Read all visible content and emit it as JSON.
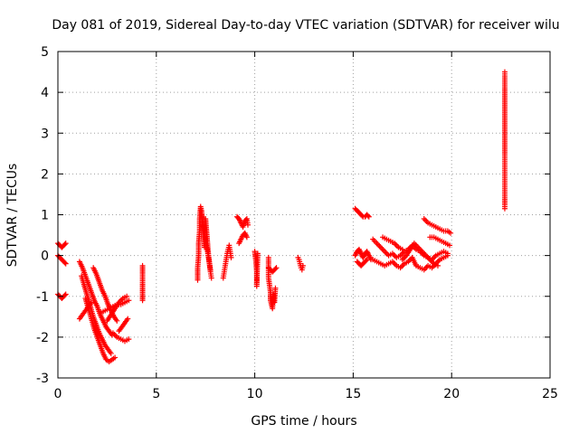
{
  "chart_data": {
    "type": "scatter",
    "title": "Day 081 of 2019, Sidereal Day-to-day VTEC variation (SDTVAR) for receiver wilu",
    "xlabel": "GPS time / hours",
    "ylabel": "SDTVAR / TECUs",
    "xlim": [
      0,
      25
    ],
    "ylim": [
      -3,
      5
    ],
    "xticks": [
      "0",
      "5",
      "10",
      "15",
      "20",
      "25"
    ],
    "yticks": [
      "-3",
      "-2",
      "-1",
      "0",
      "1",
      "2",
      "3",
      "4",
      "5"
    ],
    "grid": true,
    "marker": "plus",
    "color": "#ff0000",
    "segments": [
      {
        "x": [
          0.0,
          0.1,
          0.2,
          0.3,
          0.4
        ],
        "y": [
          0.3,
          0.25,
          0.2,
          0.25,
          0.3
        ]
      },
      {
        "x": [
          0.0,
          0.1,
          0.2,
          0.3,
          0.4
        ],
        "y": [
          0.0,
          -0.05,
          -0.1,
          -0.15,
          -0.2
        ]
      },
      {
        "x": [
          0.0,
          0.1,
          0.2,
          0.3,
          0.4
        ],
        "y": [
          -0.95,
          -1.0,
          -1.05,
          -1.0,
          -0.95
        ]
      },
      {
        "x": [
          1.1,
          1.25,
          1.4,
          1.55,
          1.7,
          1.85,
          2.0,
          2.15,
          2.3,
          2.45,
          2.6,
          2.75
        ],
        "y": [
          -0.15,
          -0.3,
          -0.5,
          -0.7,
          -0.9,
          -1.1,
          -1.25,
          -1.45,
          -1.6,
          -1.75,
          -1.85,
          -1.95
        ]
      },
      {
        "x": [
          1.2,
          1.35,
          1.5,
          1.65,
          1.8,
          1.95,
          2.1,
          2.25,
          2.4,
          2.55,
          2.7
        ],
        "y": [
          -0.5,
          -0.75,
          -1.0,
          -1.25,
          -1.5,
          -1.7,
          -1.9,
          -2.05,
          -2.2,
          -2.3,
          -2.4
        ]
      },
      {
        "x": [
          1.4,
          1.55,
          1.7,
          1.85,
          2.0,
          2.15,
          2.3,
          2.45,
          2.6,
          2.75,
          2.9
        ],
        "y": [
          -1.05,
          -1.3,
          -1.55,
          -1.8,
          -2.0,
          -2.2,
          -2.4,
          -2.55,
          -2.6,
          -2.55,
          -2.5
        ]
      },
      {
        "x": [
          1.1,
          1.25,
          1.4,
          1.55,
          1.7
        ],
        "y": [
          -1.55,
          -1.45,
          -1.35,
          -1.25,
          -1.15
        ]
      },
      {
        "x": [
          1.8,
          1.95,
          2.1,
          2.25,
          2.4,
          2.55,
          2.7,
          2.85,
          3.0
        ],
        "y": [
          -0.3,
          -0.45,
          -0.65,
          -0.85,
          -1.0,
          -1.2,
          -1.35,
          -1.5,
          -1.6
        ]
      },
      {
        "x": [
          2.2,
          2.4,
          2.6,
          2.8,
          3.0,
          3.2,
          3.4,
          3.6
        ],
        "y": [
          -1.4,
          -1.35,
          -1.3,
          -1.25,
          -1.2,
          -1.2,
          -1.15,
          -1.1
        ]
      },
      {
        "x": [
          2.5,
          2.7,
          2.9,
          3.1,
          3.3,
          3.5
        ],
        "y": [
          -1.6,
          -1.45,
          -1.3,
          -1.15,
          -1.05,
          -1.0
        ]
      },
      {
        "x": [
          2.8,
          3.0,
          3.2,
          3.4,
          3.6
        ],
        "y": [
          -1.9,
          -2.0,
          -2.05,
          -2.1,
          -2.05
        ]
      },
      {
        "x": [
          3.1,
          3.25,
          3.4,
          3.55
        ],
        "y": [
          -1.85,
          -1.75,
          -1.65,
          -1.55
        ]
      },
      {
        "x": [
          4.3,
          4.3,
          4.3,
          4.3,
          4.3
        ],
        "y": [
          -0.25,
          -0.45,
          -0.7,
          -0.9,
          -1.1
        ]
      },
      {
        "x": [
          7.1,
          7.1,
          7.15,
          7.15,
          7.2,
          7.2,
          7.25,
          7.3,
          7.35,
          7.4,
          7.45,
          7.5,
          7.55,
          7.6,
          7.65,
          7.7,
          7.75,
          7.8
        ],
        "y": [
          -0.6,
          -0.3,
          0.0,
          0.3,
          0.6,
          0.9,
          1.2,
          1.1,
          0.8,
          0.5,
          0.2,
          0.9,
          0.6,
          0.3,
          0.0,
          -0.2,
          -0.4,
          -0.55
        ]
      },
      {
        "x": [
          7.3,
          7.35,
          7.4,
          7.45,
          7.5,
          7.55,
          7.6,
          7.65,
          7.7,
          7.75
        ],
        "y": [
          1.0,
          0.85,
          0.7,
          0.55,
          0.4,
          0.25,
          0.1,
          -0.05,
          -0.2,
          -0.35
        ]
      },
      {
        "x": [
          8.4,
          8.45,
          8.5,
          8.55,
          8.6,
          8.65,
          8.7,
          8.75,
          8.8
        ],
        "y": [
          -0.55,
          -0.4,
          -0.25,
          -0.1,
          0.05,
          0.15,
          0.25,
          0.1,
          -0.05
        ]
      },
      {
        "x": [
          9.1,
          9.2,
          9.3,
          9.4,
          9.5,
          9.6,
          9.65
        ],
        "y": [
          0.95,
          0.9,
          0.8,
          0.7,
          0.85,
          0.9,
          0.75
        ]
      },
      {
        "x": [
          9.2,
          9.3,
          9.4,
          9.5,
          9.6
        ],
        "y": [
          0.3,
          0.4,
          0.5,
          0.55,
          0.45
        ]
      },
      {
        "x": [
          10.0,
          10.05,
          10.1,
          10.1,
          10.1,
          10.15
        ],
        "y": [
          0.1,
          -0.1,
          -0.4,
          -0.6,
          -0.75,
          0.05
        ]
      },
      {
        "x": [
          10.7,
          10.8,
          10.9,
          11.0,
          11.1
        ],
        "y": [
          -0.3,
          -0.35,
          -0.4,
          -0.35,
          -0.3
        ]
      },
      {
        "x": [
          10.7,
          10.7,
          10.8,
          10.8,
          10.9,
          10.95,
          11.0,
          11.05
        ],
        "y": [
          -0.05,
          -0.55,
          -0.9,
          -1.1,
          -1.3,
          -0.95,
          -1.15,
          -0.8
        ]
      },
      {
        "x": [
          12.2,
          12.25,
          12.3,
          12.35,
          12.4,
          12.45
        ],
        "y": [
          -0.05,
          -0.1,
          -0.2,
          -0.3,
          -0.35,
          -0.25
        ]
      },
      {
        "x": [
          15.1,
          15.2,
          15.3,
          15.4,
          15.5,
          15.6,
          15.7,
          15.8
        ],
        "y": [
          1.15,
          1.1,
          1.05,
          1.0,
          0.95,
          0.95,
          1.0,
          0.95
        ]
      },
      {
        "x": [
          15.1,
          15.2,
          15.3,
          15.4,
          15.5,
          15.6,
          15.7,
          15.8,
          15.9
        ],
        "y": [
          0.0,
          0.1,
          0.15,
          0.05,
          -0.05,
          0.05,
          0.1,
          0.0,
          -0.1
        ]
      },
      {
        "x": [
          15.2,
          15.3,
          15.4,
          15.5,
          15.6,
          15.7
        ],
        "y": [
          -0.15,
          -0.2,
          -0.25,
          -0.2,
          -0.15,
          -0.1
        ]
      },
      {
        "x": [
          16.0,
          16.2,
          16.4,
          16.6,
          16.8,
          17.0,
          17.2,
          17.4,
          17.6,
          17.8,
          18.0,
          18.2,
          18.4,
          18.6,
          18.8,
          19.0,
          19.2,
          19.4,
          19.6,
          19.8
        ],
        "y": [
          0.4,
          0.3,
          0.2,
          0.1,
          0.0,
          0.05,
          -0.05,
          0.0,
          0.1,
          0.15,
          0.25,
          0.15,
          0.1,
          0.0,
          -0.05,
          -0.1,
          0.0,
          0.05,
          0.1,
          0.05
        ]
      },
      {
        "x": [
          16.0,
          16.2,
          16.4,
          16.6,
          16.8,
          17.0,
          17.2,
          17.4,
          17.6,
          17.8,
          18.0,
          18.2,
          18.4,
          18.6,
          18.8,
          19.0,
          19.2,
          19.4,
          19.6,
          19.8
        ],
        "y": [
          -0.1,
          -0.15,
          -0.2,
          -0.25,
          -0.2,
          -0.15,
          -0.25,
          -0.3,
          -0.2,
          -0.15,
          -0.05,
          -0.25,
          -0.3,
          -0.35,
          -0.25,
          -0.3,
          -0.2,
          -0.1,
          -0.05,
          0.0
        ]
      },
      {
        "x": [
          16.5,
          16.7,
          16.9,
          17.1,
          17.3,
          17.5
        ],
        "y": [
          0.45,
          0.4,
          0.35,
          0.3,
          0.2,
          0.15
        ]
      },
      {
        "x": [
          17.5,
          17.7,
          17.9,
          18.1,
          18.3,
          18.5,
          18.7,
          18.9,
          19.1,
          19.3
        ],
        "y": [
          -0.1,
          0.0,
          0.15,
          0.3,
          0.2,
          0.1,
          0.0,
          -0.1,
          -0.2,
          -0.25
        ]
      },
      {
        "x": [
          18.6,
          18.8,
          19.0,
          19.2,
          19.4,
          19.6,
          19.8,
          19.95
        ],
        "y": [
          0.9,
          0.8,
          0.75,
          0.7,
          0.65,
          0.6,
          0.6,
          0.55
        ]
      },
      {
        "x": [
          18.9,
          19.1,
          19.3,
          19.5,
          19.7,
          19.9
        ],
        "y": [
          0.45,
          0.45,
          0.4,
          0.35,
          0.3,
          0.25
        ]
      },
      {
        "x": [
          22.7,
          22.7,
          22.7,
          22.7
        ],
        "y": [
          4.5,
          4.4,
          1.25,
          1.15
        ]
      }
    ]
  }
}
